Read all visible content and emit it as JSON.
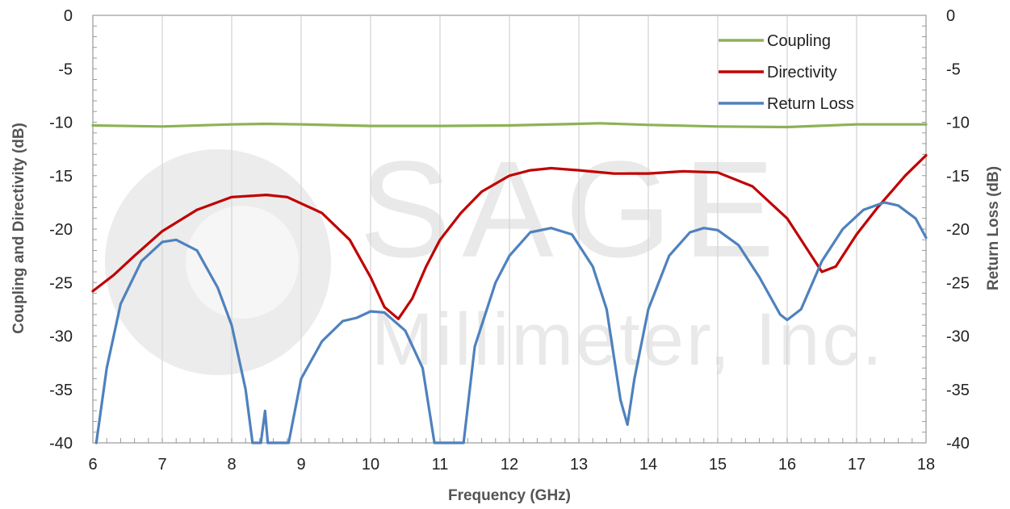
{
  "watermark": {
    "brand": "SAGE",
    "sub": "Millimeter, Inc."
  },
  "chart_data": {
    "type": "line",
    "xlabel": "Frequency (GHz)",
    "ylabel_left": "Coupling and Directivity (dB)",
    "ylabel_right": "Return Loss (dB)",
    "xlim": [
      6,
      18
    ],
    "ylim": [
      -40,
      0
    ],
    "xticks": [
      6,
      7,
      8,
      9,
      10,
      11,
      12,
      13,
      14,
      15,
      16,
      17,
      18
    ],
    "yticks": [
      0,
      -5,
      -10,
      -15,
      -20,
      -25,
      -30,
      -35,
      -40
    ],
    "grid": "vertical",
    "legend_position": "top-right",
    "series": [
      {
        "name": "Coupling",
        "color": "#8db255",
        "x": [
          6,
          7,
          8,
          8.5,
          9,
          10,
          11,
          12,
          13,
          13.3,
          14,
          15,
          16,
          17,
          17.5,
          18
        ],
        "y": [
          -10.3,
          -10.4,
          -10.2,
          -10.15,
          -10.2,
          -10.35,
          -10.35,
          -10.3,
          -10.15,
          -10.1,
          -10.25,
          -10.4,
          -10.45,
          -10.2,
          -10.2,
          -10.2
        ]
      },
      {
        "name": "Directivity",
        "color": "#c00000",
        "x": [
          6,
          6.3,
          6.6,
          7,
          7.5,
          8,
          8.5,
          8.8,
          9.3,
          9.7,
          10,
          10.2,
          10.4,
          10.6,
          10.8,
          11,
          11.3,
          11.6,
          12,
          12.3,
          12.6,
          13,
          13.5,
          14,
          14.5,
          15,
          15.5,
          16,
          16.3,
          16.5,
          16.7,
          17,
          17.3,
          17.7,
          18
        ],
        "y": [
          -25.8,
          -24.3,
          -22.5,
          -20.2,
          -18.2,
          -17.0,
          -16.8,
          -17.0,
          -18.5,
          -21.0,
          -24.5,
          -27.3,
          -28.4,
          -26.5,
          -23.5,
          -21.0,
          -18.5,
          -16.5,
          -15.0,
          -14.5,
          -14.3,
          -14.5,
          -14.8,
          -14.8,
          -14.6,
          -14.7,
          -16.0,
          -19.0,
          -22.0,
          -24.0,
          -23.5,
          -20.5,
          -18.0,
          -15.0,
          -13.1
        ]
      },
      {
        "name": "Return Loss",
        "color": "#4f81bd",
        "x": [
          6.05,
          6.2,
          6.4,
          6.7,
          7.0,
          7.2,
          7.5,
          7.8,
          8.0,
          8.2,
          8.3,
          8.42,
          8.48,
          8.52,
          8.58,
          8.82,
          9.0,
          9.3,
          9.6,
          9.8,
          10.0,
          10.2,
          10.5,
          10.75,
          10.92,
          11.34,
          11.5,
          11.8,
          12.0,
          12.3,
          12.6,
          12.9,
          13.2,
          13.4,
          13.6,
          13.7,
          13.8,
          14.0,
          14.3,
          14.6,
          14.8,
          15.0,
          15.3,
          15.6,
          15.9,
          16.0,
          16.2,
          16.5,
          16.8,
          17.1,
          17.4,
          17.6,
          17.85,
          18.0
        ],
        "y": [
          -40.0,
          -33.0,
          -27.0,
          -23.0,
          -21.2,
          -21.0,
          -22.0,
          -25.5,
          -29.0,
          -35.0,
          -40.0,
          -40.0,
          -37.0,
          -40.0,
          -40.0,
          -40.0,
          -34.0,
          -30.5,
          -28.6,
          -28.3,
          -27.7,
          -27.8,
          -29.5,
          -33.0,
          -40.0,
          -40.0,
          -31.0,
          -25.0,
          -22.5,
          -20.3,
          -19.9,
          -20.5,
          -23.5,
          -27.5,
          -36.0,
          -38.3,
          -34.0,
          -27.5,
          -22.5,
          -20.3,
          -19.9,
          -20.1,
          -21.5,
          -24.5,
          -28.0,
          -28.5,
          -27.5,
          -23.0,
          -20.0,
          -18.2,
          -17.5,
          -17.8,
          -19.0,
          -20.8
        ]
      }
    ]
  }
}
